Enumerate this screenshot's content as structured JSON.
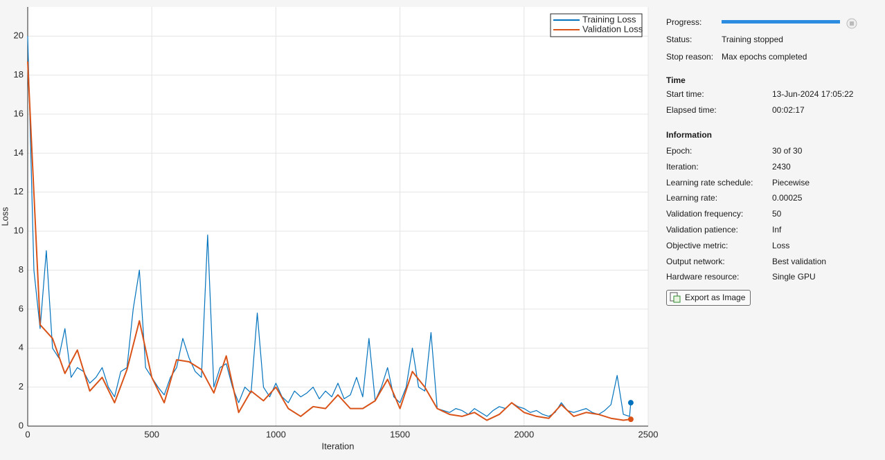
{
  "chart_data": {
    "type": "line",
    "x_label": "Iteration",
    "y_label": "Loss",
    "xlim": [
      0,
      2500
    ],
    "xticks": [
      0,
      500,
      1000,
      1500,
      2000,
      2500
    ],
    "ylim": [
      0,
      21.5
    ],
    "yticks": [
      0,
      2,
      4,
      6,
      8,
      10,
      12,
      14,
      16,
      18,
      20
    ],
    "grid": true,
    "legend": "top-right",
    "series": [
      {
        "name": "Training Loss",
        "color": "#0072BD",
        "x": [
          0,
          25,
          50,
          75,
          100,
          125,
          150,
          175,
          200,
          225,
          250,
          275,
          300,
          325,
          350,
          375,
          400,
          425,
          450,
          475,
          500,
          525,
          550,
          575,
          600,
          625,
          650,
          675,
          700,
          725,
          750,
          775,
          800,
          825,
          850,
          875,
          900,
          925,
          950,
          975,
          1000,
          1025,
          1050,
          1075,
          1100,
          1125,
          1150,
          1175,
          1200,
          1225,
          1250,
          1275,
          1300,
          1325,
          1350,
          1375,
          1400,
          1425,
          1450,
          1475,
          1500,
          1525,
          1550,
          1575,
          1600,
          1625,
          1650,
          1675,
          1700,
          1725,
          1750,
          1775,
          1800,
          1825,
          1850,
          1875,
          1900,
          1925,
          1950,
          1975,
          2000,
          2025,
          2050,
          2075,
          2100,
          2125,
          2150,
          2175,
          2200,
          2225,
          2250,
          2275,
          2300,
          2325,
          2350,
          2375,
          2400,
          2425,
          2430
        ],
        "values": [
          20,
          8,
          5,
          9,
          4,
          3.5,
          5,
          2.5,
          3,
          2.8,
          2.2,
          2.5,
          3,
          2,
          1.5,
          2.8,
          3,
          6,
          8,
          3,
          2.5,
          2,
          1.6,
          2.5,
          3,
          4.5,
          3.5,
          2.8,
          2.5,
          9.8,
          2,
          3,
          3.2,
          2,
          1.2,
          2,
          1.7,
          5.8,
          2,
          1.5,
          2.2,
          1.5,
          1.2,
          1.8,
          1.5,
          1.7,
          2,
          1.4,
          1.8,
          1.5,
          2.2,
          1.4,
          1.6,
          2.5,
          1.5,
          4.5,
          1.3,
          2,
          3,
          1.5,
          1.2,
          2,
          4,
          2,
          1.8,
          4.8,
          0.9,
          0.8,
          0.7,
          0.9,
          0.8,
          0.6,
          0.9,
          0.7,
          0.5,
          0.8,
          1,
          0.9,
          1.2,
          1,
          0.9,
          0.7,
          0.8,
          0.6,
          0.5,
          0.7,
          1.2,
          0.8,
          0.7,
          0.8,
          0.9,
          0.7,
          0.6,
          0.8,
          1.1,
          2.6,
          0.6,
          0.5,
          1.2
        ]
      },
      {
        "name": "Validation Loss",
        "color": "#D95319",
        "x": [
          0,
          50,
          100,
          150,
          200,
          250,
          300,
          350,
          400,
          450,
          500,
          550,
          600,
          650,
          700,
          750,
          800,
          850,
          900,
          950,
          1000,
          1050,
          1100,
          1150,
          1200,
          1250,
          1300,
          1350,
          1400,
          1450,
          1500,
          1550,
          1600,
          1650,
          1700,
          1750,
          1800,
          1850,
          1900,
          1950,
          2000,
          2050,
          2100,
          2150,
          2200,
          2250,
          2300,
          2350,
          2400,
          2430
        ],
        "values": [
          18.7,
          5.2,
          4.5,
          2.7,
          3.9,
          1.8,
          2.5,
          1.2,
          2.9,
          5.4,
          2.5,
          1.2,
          3.4,
          3.3,
          2.9,
          1.7,
          3.6,
          0.7,
          1.8,
          1.3,
          2.0,
          0.9,
          0.5,
          1.0,
          0.9,
          1.6,
          0.9,
          0.9,
          1.3,
          2.4,
          0.9,
          2.8,
          2.0,
          0.9,
          0.6,
          0.5,
          0.7,
          0.3,
          0.6,
          1.2,
          0.7,
          0.5,
          0.4,
          1.1,
          0.5,
          0.7,
          0.6,
          0.4,
          0.3,
          0.35
        ]
      }
    ]
  },
  "panel": {
    "progress_label": "Progress:",
    "status": {
      "label": "Status:",
      "value": "Training stopped"
    },
    "stop_reason": {
      "label": "Stop reason:",
      "value": "Max epochs completed"
    },
    "time": {
      "heading": "Time",
      "rows": [
        [
          "Start time:",
          "13-Jun-2024 17:05:22"
        ],
        [
          "Elapsed time:",
          "00:02:17"
        ]
      ]
    },
    "information": {
      "heading": "Information",
      "rows": [
        [
          "Epoch:",
          "30 of 30"
        ],
        [
          "Iteration:",
          "2430"
        ],
        [
          "Learning rate schedule:",
          "Piecewise"
        ],
        [
          "Learning rate:",
          "0.00025"
        ],
        [
          "Validation frequency:",
          "50"
        ],
        [
          "Validation patience:",
          "Inf"
        ],
        [
          "Objective metric:",
          "Loss"
        ],
        [
          "Output network:",
          "Best validation"
        ],
        [
          "Hardware resource:",
          "Single GPU"
        ]
      ]
    },
    "export_button": "Export as Image"
  }
}
